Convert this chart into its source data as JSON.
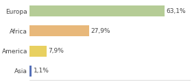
{
  "categories": [
    "Europa",
    "Africa",
    "America",
    "Asia"
  ],
  "values": [
    63.1,
    27.9,
    7.9,
    1.1
  ],
  "labels": [
    "63,1%",
    "27,9%",
    "7,9%",
    "1,1%"
  ],
  "bar_colors": [
    "#b5cc96",
    "#e8b87a",
    "#e8d060",
    "#5570b8"
  ],
  "background_color": "#ffffff",
  "xlim": [
    0,
    75
  ],
  "label_fontsize": 6.5,
  "category_fontsize": 6.5,
  "bar_height": 0.55
}
